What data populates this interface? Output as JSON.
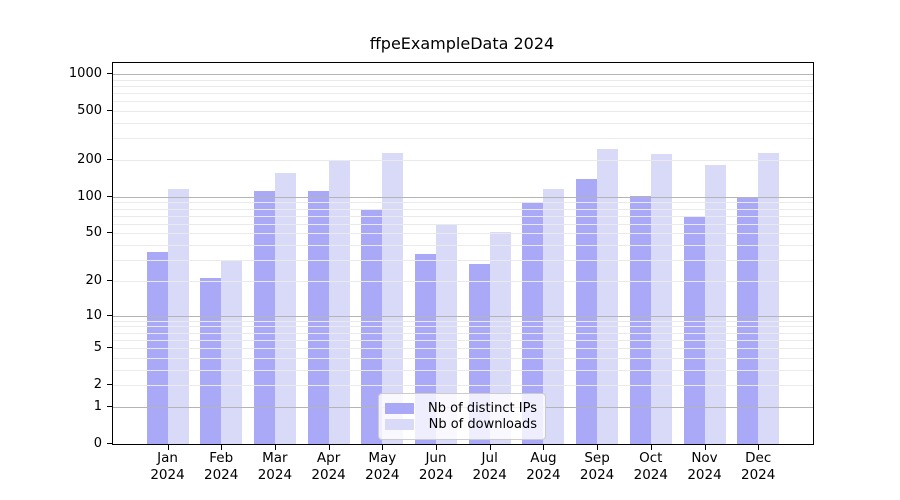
{
  "chart_data": {
    "type": "bar",
    "title": "ffpeExampleData 2024",
    "categories": [
      "Jan",
      "Feb",
      "Mar",
      "Apr",
      "May",
      "Jun",
      "Jul",
      "Aug",
      "Sep",
      "Oct",
      "Nov",
      "Dec"
    ],
    "year": "2024",
    "series": [
      {
        "name": "Nb of distinct IPs",
        "color": "#a9a9f7",
        "values": [
          35,
          21,
          112,
          112,
          80,
          34,
          28,
          90,
          140,
          101,
          69,
          97
        ]
      },
      {
        "name": "Nb of downloads",
        "color": "#d9d9f8",
        "values": [
          115,
          30,
          158,
          198,
          228,
          59,
          51,
          116,
          246,
          224,
          182,
          227
        ]
      }
    ],
    "yscale": "log1p",
    "ylim": [
      0,
      1300
    ],
    "yticks": [
      0,
      1,
      2,
      5,
      10,
      20,
      50,
      100,
      200,
      500,
      1000
    ],
    "major_gridlines": [
      1,
      10,
      100,
      1000
    ],
    "minor_gridline_steps": [
      2,
      3,
      4,
      5,
      6,
      7,
      8,
      9
    ],
    "grid": "horizontal",
    "legend_position": "inside-bottom-center",
    "xlabel": "",
    "ylabel": ""
  }
}
